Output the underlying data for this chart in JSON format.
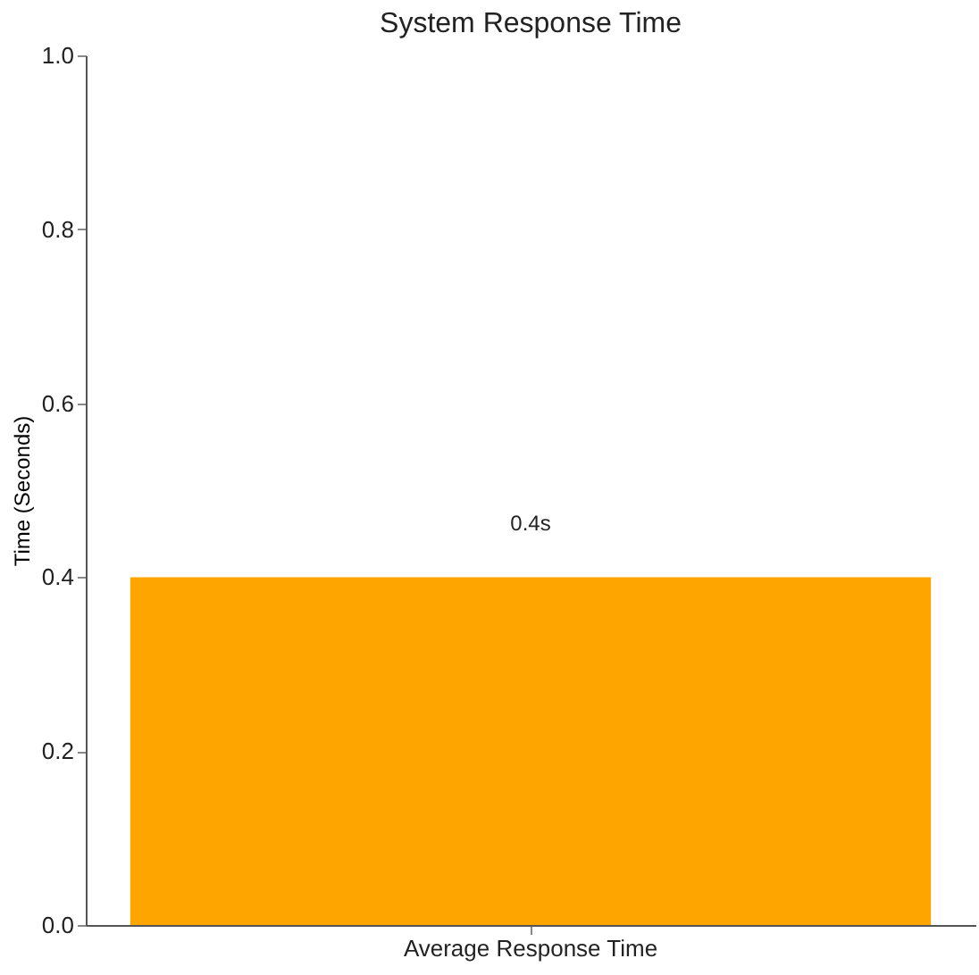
{
  "chart_data": {
    "type": "bar",
    "title": "System Response Time",
    "ylabel": "Time (Seconds)",
    "categories": [
      "Average Response Time"
    ],
    "values": [
      0.4
    ],
    "value_labels": [
      "0.4s"
    ],
    "color": "#ffa500",
    "ylim": [
      0,
      1.0
    ],
    "yticks": [
      {
        "value": 0,
        "label": "0.0"
      },
      {
        "value": 0.2,
        "label": "0.2"
      },
      {
        "value": 0.4,
        "label": "0.4"
      },
      {
        "value": 0.6,
        "label": "0.6"
      },
      {
        "value": 0.8,
        "label": "0.8"
      },
      {
        "value": 1.0,
        "label": "1.0"
      }
    ],
    "grid": false
  }
}
